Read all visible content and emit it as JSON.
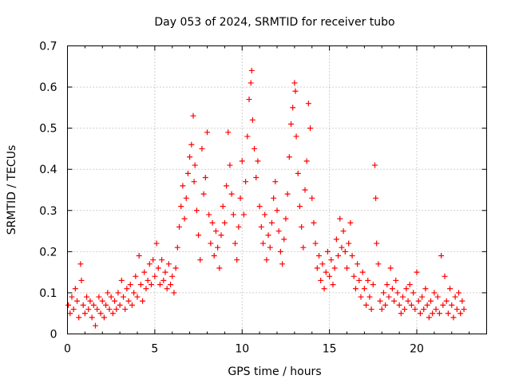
{
  "chart_data": {
    "type": "scatter",
    "title": "Day 053 of 2024, SRMTID for receiver tubo",
    "xlabel": "GPS time / hours",
    "ylabel": "SRMTID / TECUs",
    "xlim": [
      0,
      24
    ],
    "ylim": [
      0,
      0.7
    ],
    "xticks": [
      0,
      5,
      10,
      15,
      20
    ],
    "yticks": [
      0,
      0.1,
      0.2,
      0.3,
      0.4,
      0.5,
      0.6,
      0.7
    ],
    "xtick_labels": [
      "0",
      "5",
      "10",
      "15",
      "20"
    ],
    "ytick_labels": [
      "0",
      "0.1",
      "0.2",
      "0.3",
      "0.4",
      "0.5",
      "0.6",
      "0.7"
    ],
    "grid": true,
    "marker": "+",
    "color": "#ff0000",
    "series": [
      {
        "name": "SRMTID",
        "points": [
          [
            0.05,
            0.07
          ],
          [
            0.15,
            0.05
          ],
          [
            0.25,
            0.09
          ],
          [
            0.35,
            0.06
          ],
          [
            0.45,
            0.11
          ],
          [
            0.55,
            0.08
          ],
          [
            0.65,
            0.04
          ],
          [
            0.75,
            0.17
          ],
          [
            0.8,
            0.13
          ],
          [
            0.9,
            0.07
          ],
          [
            1.0,
            0.05
          ],
          [
            1.1,
            0.09
          ],
          [
            1.2,
            0.06
          ],
          [
            1.3,
            0.08
          ],
          [
            1.4,
            0.04
          ],
          [
            1.5,
            0.07
          ],
          [
            1.6,
            0.02
          ],
          [
            1.7,
            0.06
          ],
          [
            1.8,
            0.09
          ],
          [
            1.9,
            0.05
          ],
          [
            2.0,
            0.08
          ],
          [
            2.1,
            0.04
          ],
          [
            2.2,
            0.07
          ],
          [
            2.3,
            0.1
          ],
          [
            2.4,
            0.06
          ],
          [
            2.5,
            0.09
          ],
          [
            2.6,
            0.05
          ],
          [
            2.7,
            0.08
          ],
          [
            2.8,
            0.06
          ],
          [
            2.9,
            0.1
          ],
          [
            3.0,
            0.07
          ],
          [
            3.1,
            0.13
          ],
          [
            3.2,
            0.09
          ],
          [
            3.3,
            0.06
          ],
          [
            3.4,
            0.11
          ],
          [
            3.5,
            0.08
          ],
          [
            3.6,
            0.12
          ],
          [
            3.7,
            0.07
          ],
          [
            3.8,
            0.1
          ],
          [
            3.9,
            0.14
          ],
          [
            4.0,
            0.09
          ],
          [
            4.1,
            0.19
          ],
          [
            4.2,
            0.12
          ],
          [
            4.3,
            0.08
          ],
          [
            4.4,
            0.15
          ],
          [
            4.5,
            0.11
          ],
          [
            4.6,
            0.13
          ],
          [
            4.7,
            0.17
          ],
          [
            4.8,
            0.12
          ],
          [
            4.9,
            0.18
          ],
          [
            5.0,
            0.14
          ],
          [
            5.1,
            0.22
          ],
          [
            5.2,
            0.16
          ],
          [
            5.3,
            0.12
          ],
          [
            5.4,
            0.18
          ],
          [
            5.5,
            0.13
          ],
          [
            5.6,
            0.15
          ],
          [
            5.7,
            0.11
          ],
          [
            5.8,
            0.17
          ],
          [
            5.9,
            0.12
          ],
          [
            6.0,
            0.14
          ],
          [
            6.1,
            0.1
          ],
          [
            6.2,
            0.16
          ],
          [
            6.3,
            0.21
          ],
          [
            6.4,
            0.26
          ],
          [
            6.5,
            0.31
          ],
          [
            6.6,
            0.36
          ],
          [
            6.7,
            0.28
          ],
          [
            6.8,
            0.33
          ],
          [
            6.9,
            0.39
          ],
          [
            7.0,
            0.43
          ],
          [
            7.1,
            0.46
          ],
          [
            7.2,
            0.53
          ],
          [
            7.25,
            0.37
          ],
          [
            7.3,
            0.41
          ],
          [
            7.4,
            0.3
          ],
          [
            7.5,
            0.24
          ],
          [
            7.6,
            0.18
          ],
          [
            7.7,
            0.45
          ],
          [
            7.8,
            0.34
          ],
          [
            7.9,
            0.38
          ],
          [
            8.0,
            0.49
          ],
          [
            8.1,
            0.29
          ],
          [
            8.2,
            0.22
          ],
          [
            8.3,
            0.27
          ],
          [
            8.4,
            0.19
          ],
          [
            8.5,
            0.25
          ],
          [
            8.6,
            0.21
          ],
          [
            8.7,
            0.16
          ],
          [
            8.8,
            0.24
          ],
          [
            8.9,
            0.31
          ],
          [
            9.0,
            0.27
          ],
          [
            9.1,
            0.36
          ],
          [
            9.2,
            0.49
          ],
          [
            9.3,
            0.41
          ],
          [
            9.4,
            0.34
          ],
          [
            9.5,
            0.29
          ],
          [
            9.6,
            0.22
          ],
          [
            9.7,
            0.18
          ],
          [
            9.8,
            0.26
          ],
          [
            9.9,
            0.33
          ],
          [
            10.0,
            0.42
          ],
          [
            10.1,
            0.29
          ],
          [
            10.2,
            0.37
          ],
          [
            10.3,
            0.48
          ],
          [
            10.4,
            0.57
          ],
          [
            10.5,
            0.61
          ],
          [
            10.55,
            0.64
          ],
          [
            10.6,
            0.52
          ],
          [
            10.7,
            0.45
          ],
          [
            10.8,
            0.38
          ],
          [
            10.9,
            0.42
          ],
          [
            11.0,
            0.31
          ],
          [
            11.1,
            0.26
          ],
          [
            11.2,
            0.22
          ],
          [
            11.3,
            0.29
          ],
          [
            11.4,
            0.18
          ],
          [
            11.5,
            0.24
          ],
          [
            11.6,
            0.21
          ],
          [
            11.7,
            0.27
          ],
          [
            11.8,
            0.33
          ],
          [
            11.9,
            0.37
          ],
          [
            12.0,
            0.3
          ],
          [
            12.1,
            0.25
          ],
          [
            12.2,
            0.2
          ],
          [
            12.3,
            0.17
          ],
          [
            12.4,
            0.23
          ],
          [
            12.5,
            0.28
          ],
          [
            12.6,
            0.34
          ],
          [
            12.7,
            0.43
          ],
          [
            12.8,
            0.51
          ],
          [
            12.9,
            0.55
          ],
          [
            13.0,
            0.61
          ],
          [
            13.05,
            0.59
          ],
          [
            13.1,
            0.48
          ],
          [
            13.2,
            0.39
          ],
          [
            13.3,
            0.31
          ],
          [
            13.4,
            0.26
          ],
          [
            13.5,
            0.21
          ],
          [
            13.6,
            0.35
          ],
          [
            13.7,
            0.42
          ],
          [
            13.8,
            0.56
          ],
          [
            13.9,
            0.5
          ],
          [
            14.0,
            0.33
          ],
          [
            14.1,
            0.27
          ],
          [
            14.2,
            0.22
          ],
          [
            14.3,
            0.16
          ],
          [
            14.4,
            0.19
          ],
          [
            14.5,
            0.13
          ],
          [
            14.6,
            0.17
          ],
          [
            14.7,
            0.11
          ],
          [
            14.8,
            0.15
          ],
          [
            14.9,
            0.2
          ],
          [
            15.0,
            0.14
          ],
          [
            15.1,
            0.18
          ],
          [
            15.2,
            0.12
          ],
          [
            15.3,
            0.16
          ],
          [
            15.4,
            0.23
          ],
          [
            15.5,
            0.19
          ],
          [
            15.6,
            0.28
          ],
          [
            15.7,
            0.21
          ],
          [
            15.8,
            0.25
          ],
          [
            15.9,
            0.2
          ],
          [
            16.0,
            0.16
          ],
          [
            16.1,
            0.22
          ],
          [
            16.2,
            0.27
          ],
          [
            16.3,
            0.19
          ],
          [
            16.4,
            0.14
          ],
          [
            16.5,
            0.11
          ],
          [
            16.6,
            0.17
          ],
          [
            16.7,
            0.13
          ],
          [
            16.8,
            0.09
          ],
          [
            16.9,
            0.15
          ],
          [
            17.0,
            0.11
          ],
          [
            17.1,
            0.07
          ],
          [
            17.2,
            0.13
          ],
          [
            17.3,
            0.09
          ],
          [
            17.4,
            0.06
          ],
          [
            17.5,
            0.12
          ],
          [
            17.6,
            0.41
          ],
          [
            17.65,
            0.33
          ],
          [
            17.7,
            0.22
          ],
          [
            17.8,
            0.17
          ],
          [
            17.9,
            0.08
          ],
          [
            18.0,
            0.06
          ],
          [
            18.1,
            0.1
          ],
          [
            18.2,
            0.07
          ],
          [
            18.3,
            0.12
          ],
          [
            18.4,
            0.09
          ],
          [
            18.5,
            0.16
          ],
          [
            18.6,
            0.11
          ],
          [
            18.7,
            0.08
          ],
          [
            18.8,
            0.13
          ],
          [
            18.9,
            0.1
          ],
          [
            19.0,
            0.07
          ],
          [
            19.1,
            0.05
          ],
          [
            19.2,
            0.09
          ],
          [
            19.3,
            0.06
          ],
          [
            19.4,
            0.11
          ],
          [
            19.5,
            0.08
          ],
          [
            19.6,
            0.12
          ],
          [
            19.7,
            0.07
          ],
          [
            19.8,
            0.1
          ],
          [
            19.9,
            0.06
          ],
          [
            20.0,
            0.15
          ],
          [
            20.1,
            0.08
          ],
          [
            20.2,
            0.05
          ],
          [
            20.3,
            0.09
          ],
          [
            20.4,
            0.06
          ],
          [
            20.5,
            0.11
          ],
          [
            20.6,
            0.07
          ],
          [
            20.7,
            0.04
          ],
          [
            20.8,
            0.08
          ],
          [
            20.9,
            0.05
          ],
          [
            21.0,
            0.1
          ],
          [
            21.1,
            0.06
          ],
          [
            21.2,
            0.09
          ],
          [
            21.3,
            0.05
          ],
          [
            21.4,
            0.19
          ],
          [
            21.5,
            0.07
          ],
          [
            21.6,
            0.14
          ],
          [
            21.7,
            0.08
          ],
          [
            21.8,
            0.05
          ],
          [
            21.9,
            0.11
          ],
          [
            22.0,
            0.07
          ],
          [
            22.1,
            0.04
          ],
          [
            22.2,
            0.09
          ],
          [
            22.3,
            0.06
          ],
          [
            22.4,
            0.1
          ],
          [
            22.5,
            0.05
          ],
          [
            22.6,
            0.08
          ],
          [
            22.7,
            0.06
          ]
        ]
      }
    ]
  }
}
